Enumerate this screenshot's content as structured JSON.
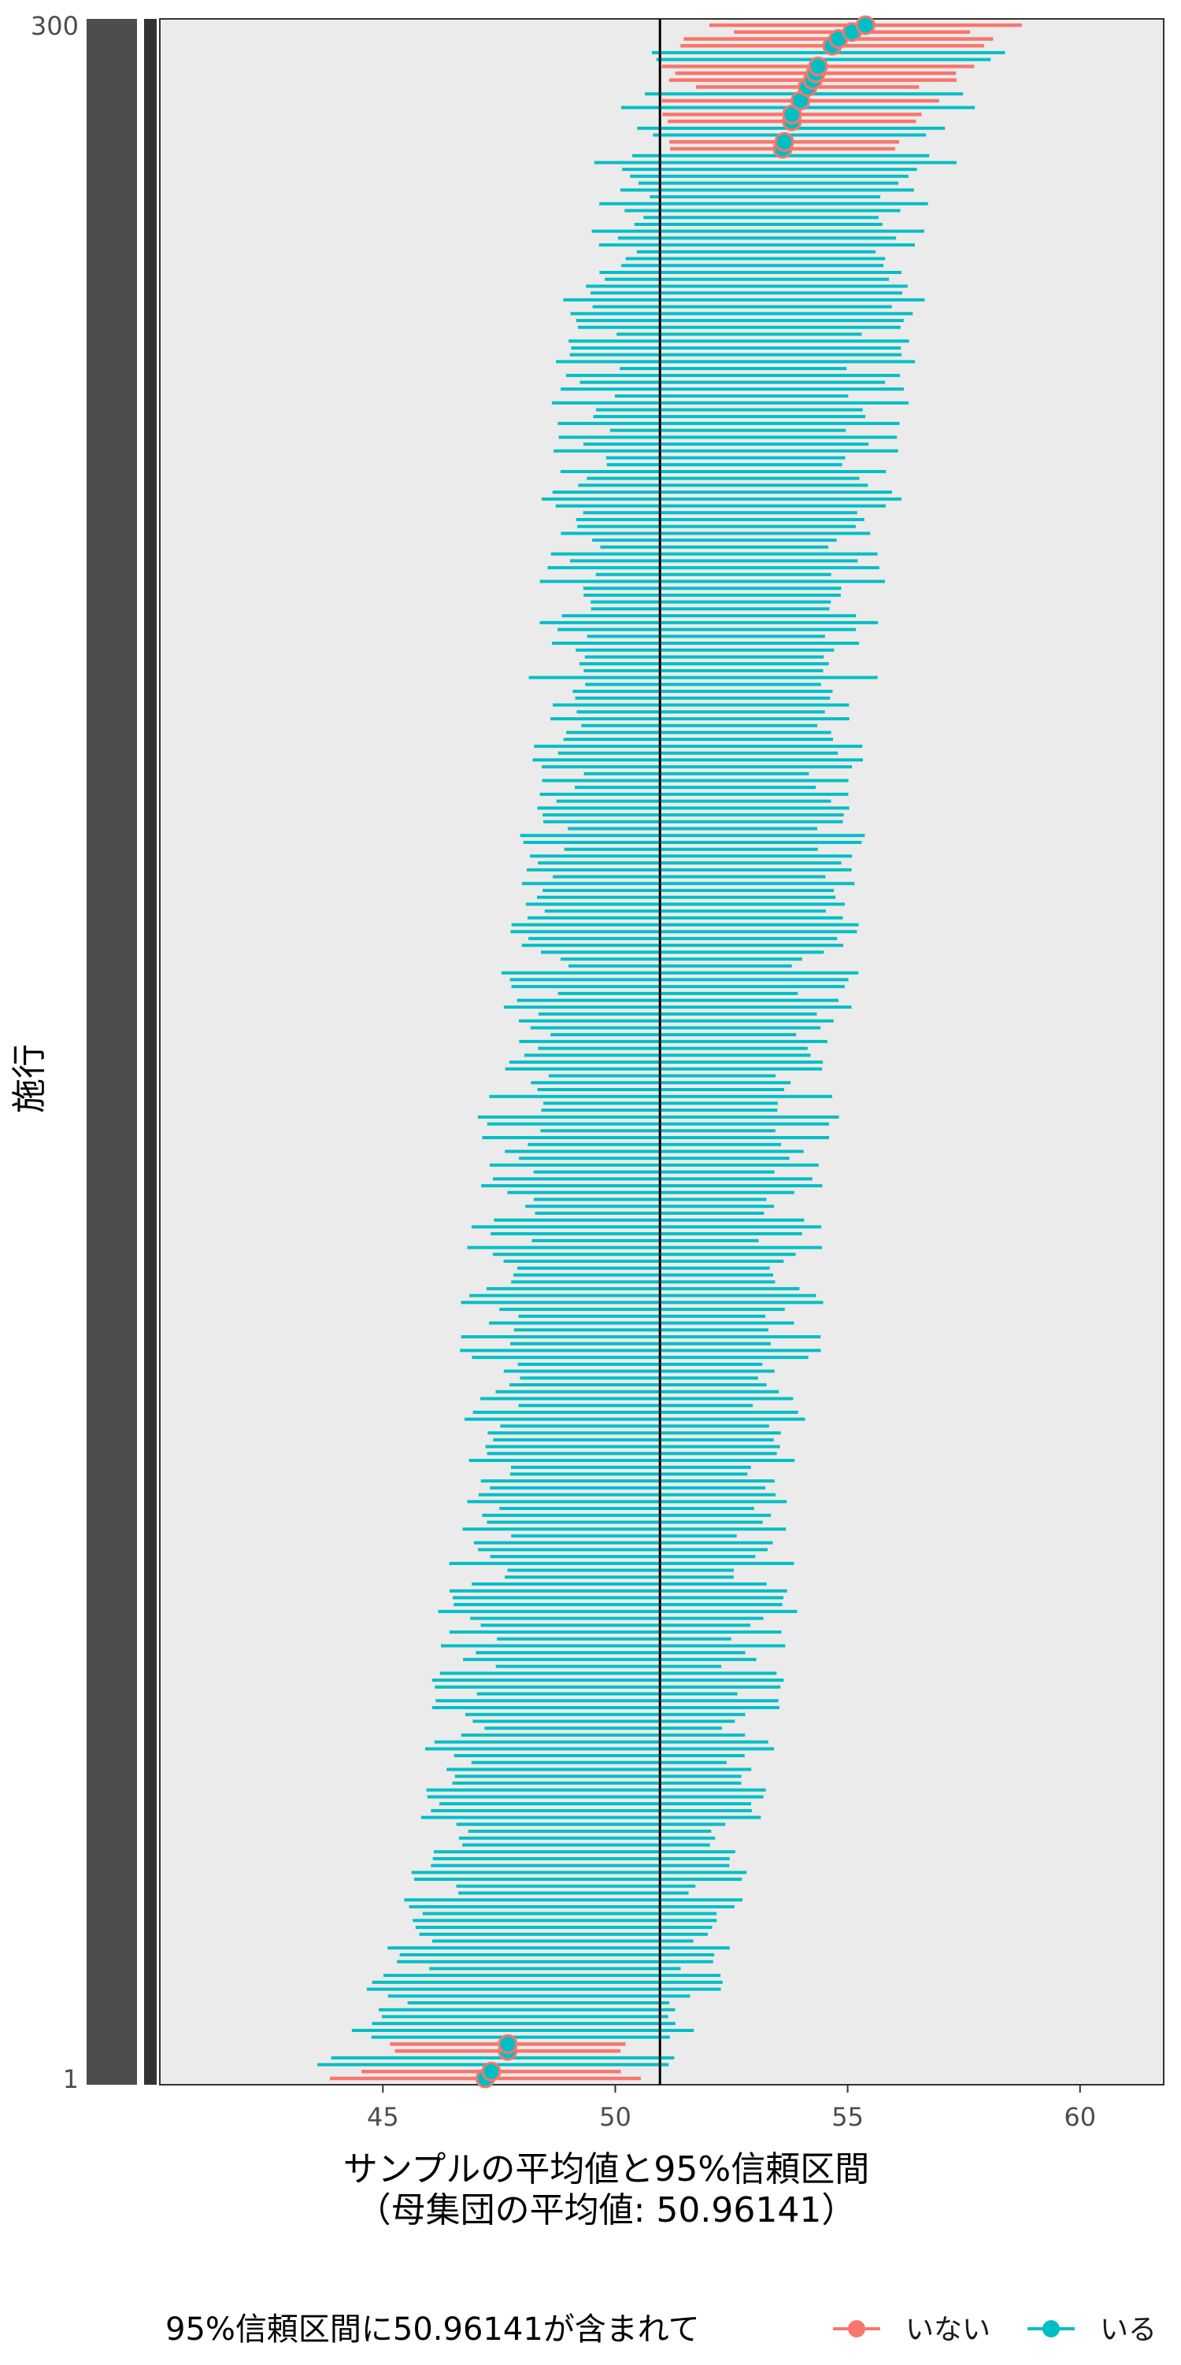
{
  "chart_data": {
    "type": "forest",
    "n_trials": 300,
    "population_mean": 50.96141,
    "population_mean_label": "50.96141",
    "x_ticks": [
      45,
      50,
      55,
      60
    ],
    "xlim": [
      40.2,
      61.8
    ],
    "xlabel_line1": "サンプルの平均値と95%信頼区間",
    "xlabel_line2": "（母集団の平均値: 50.96141）",
    "ylabel": "施行",
    "y_tick_labels_visible": [
      "1",
      "300"
    ],
    "legend": {
      "title": "95%信頼区間に50.96141が含まれて",
      "position": "bottom",
      "entries": [
        {
          "label": "いない",
          "color": "#F8766D"
        },
        {
          "label": "いる",
          "color": "#00BFC4"
        }
      ]
    },
    "sorted_by": "sample mean (ascending from bottom)",
    "mean_range_approx": [
      47.0,
      55.3
    ],
    "ci_halfwidth_approx": [
      2.4,
      3.9
    ],
    "misses_approx": {
      "top_count": 12,
      "bottom_count": 9
    },
    "panel_background": "#EBEBEB",
    "ref_line_color": "#000000",
    "point_color_in_legend_hint": "rows that miss the population mean are drawn in red with large points"
  }
}
